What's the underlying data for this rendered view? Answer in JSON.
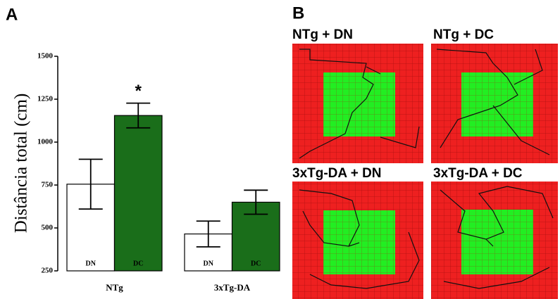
{
  "panels": {
    "a": "A",
    "b": "B"
  },
  "chart_data": {
    "type": "bar",
    "ylabel": "Distância total (cm)",
    "categories": [
      "NTg",
      "3xTg-DA"
    ],
    "series": [
      {
        "name": "DN",
        "color": "#ffffff",
        "values": [
          755,
          465
        ],
        "errors": [
          145,
          75
        ]
      },
      {
        "name": "DC",
        "color": "#1a6e1a",
        "values": [
          1155,
          650
        ],
        "errors": [
          72,
          70
        ]
      }
    ],
    "annotation": "*",
    "ylim": [
      250,
      1500
    ],
    "yticks": [
      250,
      500,
      750,
      1000,
      1250,
      1500
    ]
  },
  "tracks": [
    "NTg + DN",
    "NTg + DC",
    "3xTg-DA + DN",
    "3xTg-DA + DC"
  ]
}
